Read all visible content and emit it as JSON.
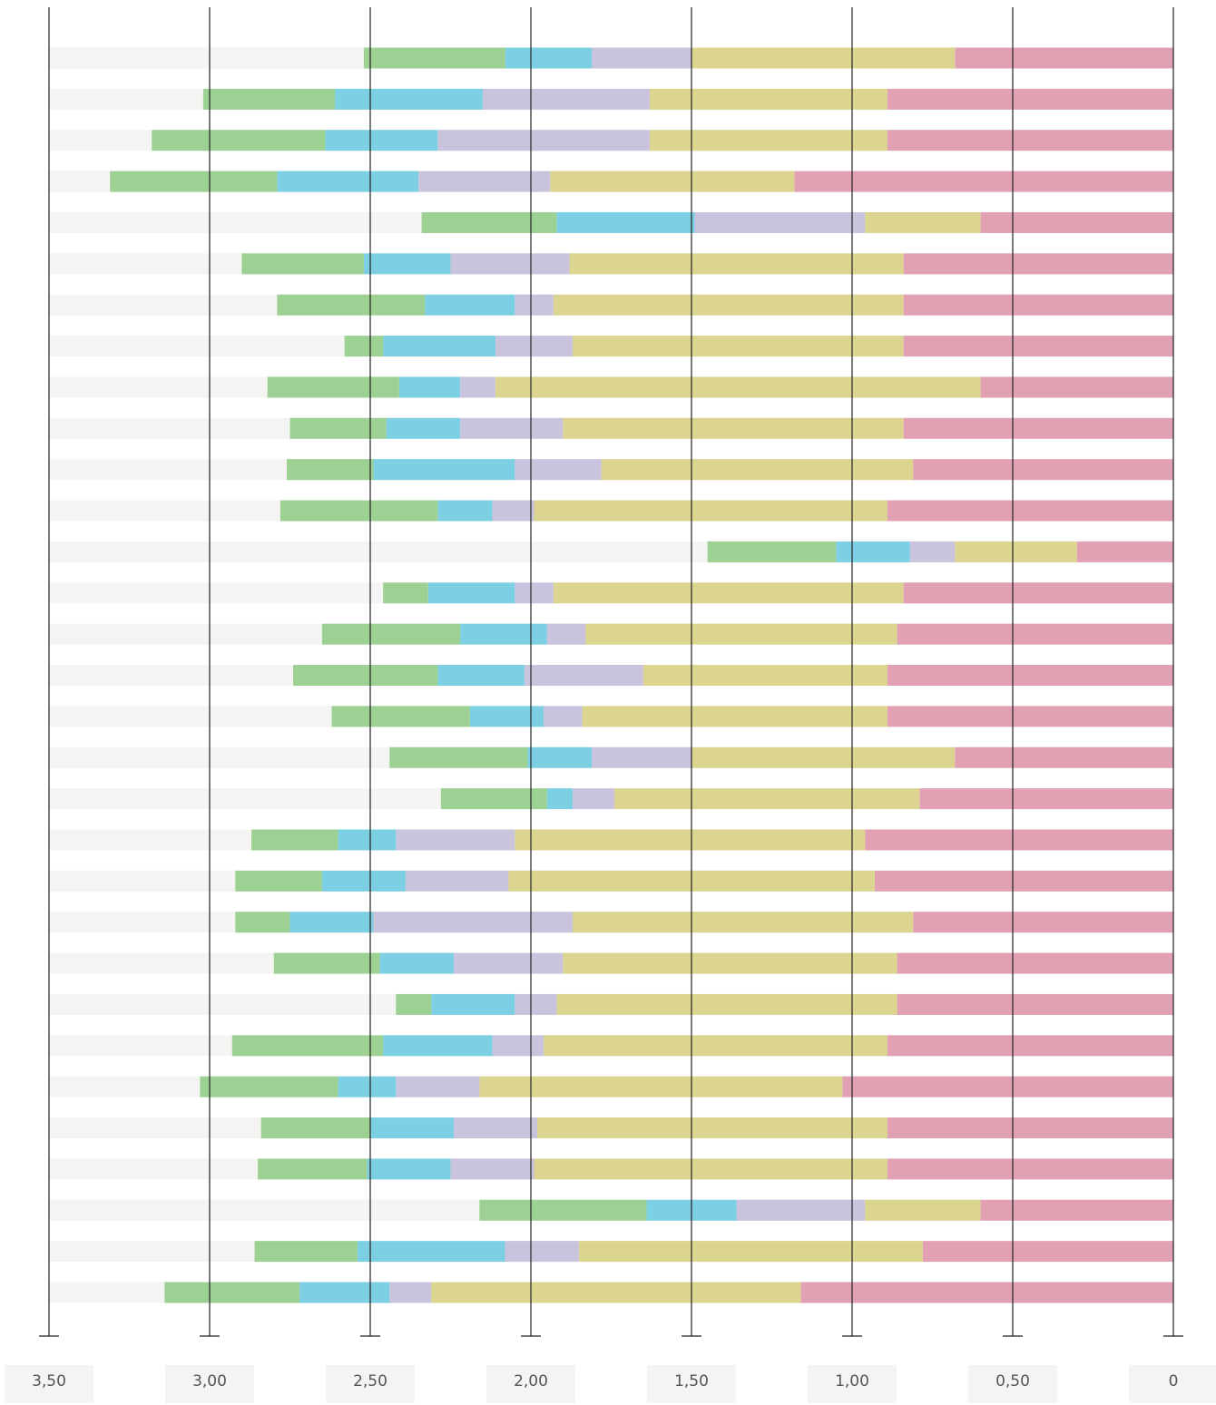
{
  "chart_data": {
    "type": "stacked_barh",
    "categories": [
      null,
      null,
      null,
      null,
      null,
      null,
      null,
      null,
      null,
      null,
      null,
      null,
      null,
      null,
      null,
      null,
      null,
      null,
      null,
      null,
      null,
      null,
      null,
      null,
      null,
      null,
      null,
      null,
      null,
      null,
      null
    ],
    "series": [
      {
        "color": "#e2a1b3",
        "values": [
          0.68,
          0.89,
          0.89,
          1.18,
          0.6,
          0.84,
          0.84,
          0.84,
          0.6,
          0.84,
          0.81,
          0.89,
          0.3,
          0.84,
          0.86,
          0.89,
          0.89,
          0.68,
          0.79,
          0.96,
          0.93,
          0.81,
          0.86,
          0.86,
          0.89,
          1.03,
          0.89,
          0.89,
          0.6,
          0.78,
          1.16
        ]
      },
      {
        "color": "#dbd590",
        "values": [
          0.82,
          0.74,
          0.74,
          0.76,
          0.36,
          1.04,
          1.09,
          1.03,
          1.51,
          1.06,
          0.97,
          1.1,
          0.38,
          1.09,
          0.97,
          0.76,
          0.95,
          0.82,
          0.95,
          1.09,
          1.14,
          1.06,
          1.04,
          1.06,
          1.07,
          1.13,
          1.09,
          1.1,
          0.36,
          1.07,
          1.15
        ]
      },
      {
        "color": "#cac3dd",
        "values": [
          0.31,
          0.52,
          0.66,
          0.41,
          0.53,
          0.37,
          0.12,
          0.24,
          0.11,
          0.32,
          0.27,
          0.13,
          0.14,
          0.12,
          0.12,
          0.37,
          0.12,
          0.31,
          0.13,
          0.37,
          0.32,
          0.62,
          0.34,
          0.13,
          0.16,
          0.26,
          0.26,
          0.26,
          0.4,
          0.23,
          0.13
        ]
      },
      {
        "color": "#7dd0e3",
        "values": [
          0.27,
          0.46,
          0.35,
          0.44,
          0.43,
          0.27,
          0.28,
          0.35,
          0.19,
          0.23,
          0.44,
          0.17,
          0.23,
          0.27,
          0.27,
          0.27,
          0.23,
          0.2,
          0.08,
          0.18,
          0.26,
          0.26,
          0.23,
          0.26,
          0.34,
          0.18,
          0.26,
          0.26,
          0.28,
          0.46,
          0.28
        ]
      },
      {
        "color": "#9dd193",
        "values": [
          0.44,
          0.41,
          0.54,
          0.52,
          0.42,
          0.38,
          0.46,
          0.12,
          0.41,
          0.3,
          0.27,
          0.49,
          0.4,
          0.14,
          0.43,
          0.45,
          0.43,
          0.43,
          0.33,
          0.27,
          0.27,
          0.17,
          0.33,
          0.11,
          0.47,
          0.43,
          0.34,
          0.34,
          0.52,
          0.32,
          0.42
        ]
      }
    ],
    "xlim": [
      3.5,
      0
    ],
    "reversed": true,
    "xticks": [
      {
        "value": 3.5,
        "label": "3,50"
      },
      {
        "value": 3,
        "label": "3,00"
      },
      {
        "value": 2.5,
        "label": "2,50"
      },
      {
        "value": 2,
        "label": "2,00"
      },
      {
        "value": 1.5,
        "label": "1,50"
      },
      {
        "value": 1,
        "label": "1,00"
      },
      {
        "value": 0.5,
        "label": "0,50"
      },
      0
    ],
    "grid": true
  }
}
